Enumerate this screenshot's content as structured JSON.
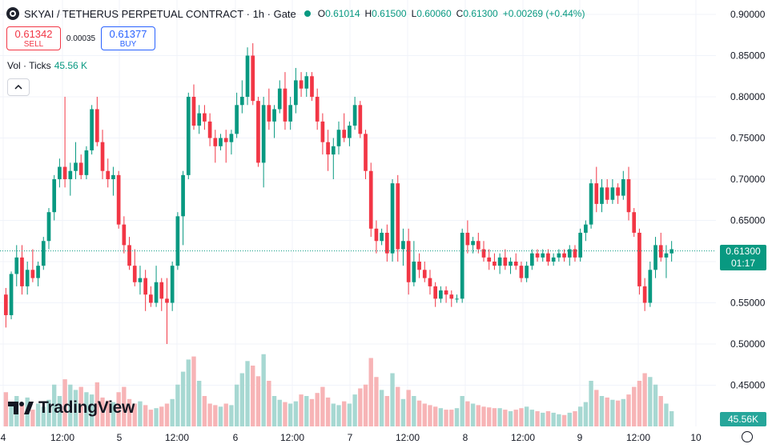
{
  "header": {
    "symbol_title": "SKYAI / TETHERUS PERPETUAL CONTRACT · 1h · Gate",
    "symbol_icon": "skyai-coin-icon",
    "market_status_color": "#089981",
    "ohlc": {
      "o_label": "O",
      "o": "0.61014",
      "h_label": "H",
      "h": "0.61500",
      "l_label": "L",
      "l": "0.60060",
      "c_label": "C",
      "c": "0.61300",
      "change": "+0.00269 (+0.44%)"
    }
  },
  "trade": {
    "sell_price": "0.61342",
    "sell_label": "SELL",
    "spread": "0.00035",
    "buy_price": "0.61377",
    "buy_label": "BUY"
  },
  "volume_legend": {
    "label": "Vol · Ticks",
    "value": "45.56 K"
  },
  "collapse_icon": "chevron-up-icon",
  "price_axis": {
    "ticks": [
      "0.90000",
      "0.85000",
      "0.80000",
      "0.75000",
      "0.70000",
      "0.65000",
      "0.60000",
      "0.55000",
      "0.50000",
      "0.45000"
    ],
    "last_price": "0.61300",
    "countdown": "01:17",
    "volume_tag": "45.56K"
  },
  "time_axis": {
    "ticks": [
      "4",
      "12:00",
      "5",
      "12:00",
      "6",
      "12:00",
      "7",
      "12:00",
      "8",
      "12:00",
      "9",
      "12:00",
      "10"
    ]
  },
  "watermark": "TradingView",
  "colors": {
    "up": "#089981",
    "down": "#f23645",
    "vol_up": "#a7d8d2",
    "vol_down": "#f7b4b6"
  },
  "chart_data": {
    "type": "candlestick",
    "interval": "1h",
    "ylim": [
      0.43,
      0.92
    ],
    "last_price": 0.613,
    "candles": [
      [
        0.56,
        0.568,
        0.52,
        0.535
      ],
      [
        0.535,
        0.588,
        0.53,
        0.585
      ],
      [
        0.585,
        0.62,
        0.57,
        0.605
      ],
      [
        0.605,
        0.62,
        0.56,
        0.57
      ],
      [
        0.57,
        0.6,
        0.56,
        0.59
      ],
      [
        0.59,
        0.615,
        0.575,
        0.58
      ],
      [
        0.58,
        0.6,
        0.57,
        0.595
      ],
      [
        0.595,
        0.63,
        0.59,
        0.625
      ],
      [
        0.625,
        0.665,
        0.615,
        0.66
      ],
      [
        0.66,
        0.705,
        0.65,
        0.7
      ],
      [
        0.7,
        0.725,
        0.69,
        0.715
      ],
      [
        0.715,
        0.8,
        0.69,
        0.7
      ],
      [
        0.7,
        0.72,
        0.68,
        0.71
      ],
      [
        0.71,
        0.745,
        0.7,
        0.72
      ],
      [
        0.72,
        0.73,
        0.7,
        0.705
      ],
      [
        0.705,
        0.74,
        0.7,
        0.735
      ],
      [
        0.735,
        0.79,
        0.73,
        0.785
      ],
      [
        0.785,
        0.8,
        0.74,
        0.745
      ],
      [
        0.745,
        0.76,
        0.7,
        0.71
      ],
      [
        0.71,
        0.725,
        0.69,
        0.7
      ],
      [
        0.7,
        0.715,
        0.68,
        0.705
      ],
      [
        0.705,
        0.71,
        0.64,
        0.645
      ],
      [
        0.645,
        0.655,
        0.61,
        0.62
      ],
      [
        0.62,
        0.63,
        0.59,
        0.595
      ],
      [
        0.595,
        0.615,
        0.57,
        0.575
      ],
      [
        0.575,
        0.595,
        0.56,
        0.58
      ],
      [
        0.58,
        0.59,
        0.54,
        0.56
      ],
      [
        0.56,
        0.57,
        0.545,
        0.55
      ],
      [
        0.55,
        0.595,
        0.545,
        0.575
      ],
      [
        0.575,
        0.58,
        0.54,
        0.555
      ],
      [
        0.555,
        0.58,
        0.5,
        0.55
      ],
      [
        0.55,
        0.6,
        0.54,
        0.595
      ],
      [
        0.595,
        0.66,
        0.59,
        0.655
      ],
      [
        0.655,
        0.71,
        0.62,
        0.705
      ],
      [
        0.705,
        0.805,
        0.7,
        0.8
      ],
      [
        0.8,
        0.815,
        0.76,
        0.765
      ],
      [
        0.765,
        0.79,
        0.755,
        0.78
      ],
      [
        0.78,
        0.79,
        0.76,
        0.77
      ],
      [
        0.77,
        0.78,
        0.74,
        0.75
      ],
      [
        0.75,
        0.76,
        0.72,
        0.74
      ],
      [
        0.74,
        0.755,
        0.735,
        0.75
      ],
      [
        0.75,
        0.76,
        0.72,
        0.745
      ],
      [
        0.745,
        0.76,
        0.73,
        0.755
      ],
      [
        0.755,
        0.805,
        0.75,
        0.79
      ],
      [
        0.79,
        0.82,
        0.78,
        0.8
      ],
      [
        0.8,
        0.86,
        0.79,
        0.85
      ],
      [
        0.85,
        0.865,
        0.79,
        0.795
      ],
      [
        0.795,
        0.8,
        0.715,
        0.72
      ],
      [
        0.72,
        0.8,
        0.69,
        0.79
      ],
      [
        0.79,
        0.81,
        0.76,
        0.77
      ],
      [
        0.77,
        0.79,
        0.75,
        0.785
      ],
      [
        0.785,
        0.82,
        0.78,
        0.81
      ],
      [
        0.81,
        0.83,
        0.76,
        0.77
      ],
      [
        0.77,
        0.8,
        0.76,
        0.79
      ],
      [
        0.79,
        0.835,
        0.78,
        0.82
      ],
      [
        0.82,
        0.83,
        0.8,
        0.81
      ],
      [
        0.81,
        0.83,
        0.8,
        0.825
      ],
      [
        0.825,
        0.83,
        0.795,
        0.8
      ],
      [
        0.8,
        0.81,
        0.76,
        0.77
      ],
      [
        0.77,
        0.78,
        0.73,
        0.745
      ],
      [
        0.745,
        0.76,
        0.71,
        0.73
      ],
      [
        0.73,
        0.75,
        0.7,
        0.74
      ],
      [
        0.74,
        0.77,
        0.73,
        0.76
      ],
      [
        0.76,
        0.78,
        0.745,
        0.75
      ],
      [
        0.75,
        0.77,
        0.74,
        0.765
      ],
      [
        0.765,
        0.8,
        0.76,
        0.79
      ],
      [
        0.79,
        0.795,
        0.75,
        0.755
      ],
      [
        0.755,
        0.76,
        0.7,
        0.71
      ],
      [
        0.71,
        0.72,
        0.63,
        0.64
      ],
      [
        0.64,
        0.65,
        0.61,
        0.625
      ],
      [
        0.625,
        0.64,
        0.62,
        0.635
      ],
      [
        0.635,
        0.645,
        0.6,
        0.61
      ],
      [
        0.61,
        0.7,
        0.6,
        0.695
      ],
      [
        0.695,
        0.705,
        0.6,
        0.615
      ],
      [
        0.615,
        0.64,
        0.595,
        0.625
      ],
      [
        0.625,
        0.64,
        0.56,
        0.575
      ],
      [
        0.575,
        0.625,
        0.57,
        0.6
      ],
      [
        0.6,
        0.61,
        0.58,
        0.59
      ],
      [
        0.59,
        0.6,
        0.575,
        0.58
      ],
      [
        0.58,
        0.59,
        0.56,
        0.57
      ],
      [
        0.57,
        0.575,
        0.545,
        0.555
      ],
      [
        0.555,
        0.57,
        0.55,
        0.565
      ],
      [
        0.565,
        0.57,
        0.55,
        0.56
      ],
      [
        0.56,
        0.565,
        0.545,
        0.555
      ],
      [
        0.555,
        0.56,
        0.55,
        0.555
      ],
      [
        0.555,
        0.64,
        0.55,
        0.635
      ],
      [
        0.635,
        0.65,
        0.61,
        0.62
      ],
      [
        0.62,
        0.63,
        0.61,
        0.625
      ],
      [
        0.625,
        0.635,
        0.61,
        0.615
      ],
      [
        0.615,
        0.625,
        0.6,
        0.605
      ],
      [
        0.605,
        0.615,
        0.59,
        0.6
      ],
      [
        0.6,
        0.61,
        0.59,
        0.595
      ],
      [
        0.595,
        0.61,
        0.585,
        0.605
      ],
      [
        0.605,
        0.615,
        0.59,
        0.595
      ],
      [
        0.595,
        0.605,
        0.585,
        0.6
      ],
      [
        0.6,
        0.61,
        0.59,
        0.595
      ],
      [
        0.595,
        0.6,
        0.575,
        0.58
      ],
      [
        0.58,
        0.6,
        0.575,
        0.595
      ],
      [
        0.595,
        0.615,
        0.59,
        0.61
      ],
      [
        0.61,
        0.615,
        0.6,
        0.605
      ],
      [
        0.605,
        0.615,
        0.6,
        0.61
      ],
      [
        0.61,
        0.615,
        0.595,
        0.6
      ],
      [
        0.6,
        0.61,
        0.595,
        0.605
      ],
      [
        0.605,
        0.615,
        0.6,
        0.61
      ],
      [
        0.61,
        0.615,
        0.6,
        0.605
      ],
      [
        0.605,
        0.62,
        0.595,
        0.615
      ],
      [
        0.615,
        0.62,
        0.6,
        0.605
      ],
      [
        0.605,
        0.64,
        0.6,
        0.635
      ],
      [
        0.635,
        0.65,
        0.625,
        0.645
      ],
      [
        0.645,
        0.7,
        0.64,
        0.695
      ],
      [
        0.695,
        0.715,
        0.66,
        0.67
      ],
      [
        0.67,
        0.7,
        0.66,
        0.69
      ],
      [
        0.69,
        0.7,
        0.67,
        0.675
      ],
      [
        0.675,
        0.7,
        0.67,
        0.69
      ],
      [
        0.69,
        0.695,
        0.67,
        0.68
      ],
      [
        0.68,
        0.71,
        0.675,
        0.7
      ],
      [
        0.7,
        0.715,
        0.65,
        0.66
      ],
      [
        0.66,
        0.665,
        0.63,
        0.635
      ],
      [
        0.635,
        0.64,
        0.56,
        0.57
      ],
      [
        0.57,
        0.58,
        0.54,
        0.55
      ],
      [
        0.55,
        0.6,
        0.545,
        0.59
      ],
      [
        0.59,
        0.63,
        0.58,
        0.62
      ],
      [
        0.62,
        0.635,
        0.6,
        0.605
      ],
      [
        0.605,
        0.62,
        0.58,
        0.61
      ],
      [
        0.61,
        0.625,
        0.6,
        0.615
      ]
    ],
    "volumes": [
      0.45,
      0.3,
      0.4,
      0.28,
      0.38,
      0.22,
      0.3,
      0.26,
      0.35,
      0.55,
      0.4,
      0.62,
      0.55,
      0.48,
      0.52,
      0.45,
      0.42,
      0.58,
      0.38,
      0.34,
      0.32,
      0.45,
      0.52,
      0.36,
      0.3,
      0.33,
      0.28,
      0.22,
      0.24,
      0.26,
      0.3,
      0.36,
      0.55,
      0.72,
      0.88,
      0.92,
      0.6,
      0.4,
      0.3,
      0.28,
      0.26,
      0.3,
      0.28,
      0.55,
      0.7,
      0.86,
      0.8,
      0.66,
      0.95,
      0.6,
      0.4,
      0.35,
      0.32,
      0.3,
      0.33,
      0.42,
      0.4,
      0.36,
      0.44,
      0.52,
      0.38,
      0.3,
      0.28,
      0.33,
      0.3,
      0.42,
      0.5,
      0.55,
      0.9,
      0.65,
      0.48,
      0.4,
      0.7,
      0.52,
      0.36,
      0.48,
      0.4,
      0.34,
      0.3,
      0.28,
      0.26,
      0.24,
      0.22,
      0.22,
      0.24,
      0.4,
      0.33,
      0.3,
      0.28,
      0.26,
      0.25,
      0.24,
      0.24,
      0.22,
      0.2,
      0.22,
      0.24,
      0.26,
      0.22,
      0.2,
      0.18,
      0.2,
      0.18,
      0.16,
      0.15,
      0.18,
      0.2,
      0.26,
      0.32,
      0.6,
      0.48,
      0.4,
      0.38,
      0.35,
      0.34,
      0.36,
      0.42,
      0.52,
      0.6,
      0.7,
      0.65,
      0.55,
      0.4,
      0.3,
      0.2
    ]
  }
}
